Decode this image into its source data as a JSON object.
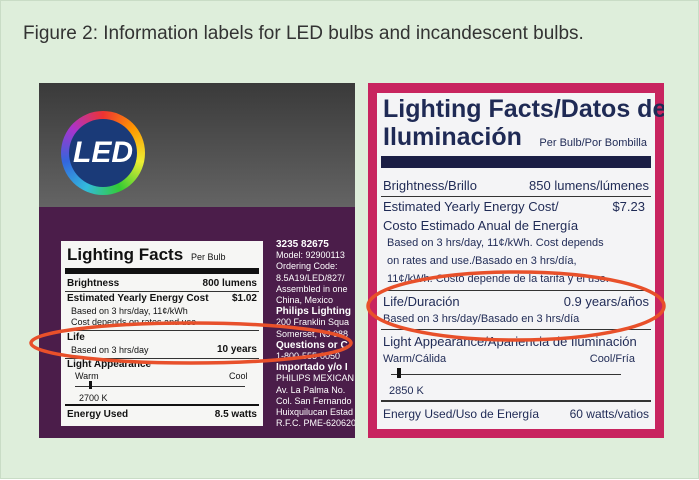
{
  "caption": "Figure 2: Information labels for LED bulbs and incandescent bulbs.",
  "led_photo": {
    "logo": "LED",
    "label": {
      "title": "Lighting Facts",
      "per": "Per Bulb",
      "brightness": [
        "Brightness",
        "800 lumens"
      ],
      "cost": [
        "Estimated Yearly Energy Cost",
        "$1.02"
      ],
      "cost_note": [
        "Based on 3 hrs/day, 11¢/kWh",
        "Cost depends on rates and use"
      ],
      "life": [
        "Life",
        "Based on 3 hrs/day",
        "10 years"
      ],
      "appearance": "Light Appearance",
      "warm": "Warm",
      "cool": "Cool",
      "temp": "2700 K",
      "energy": [
        "Energy Used",
        "8.5 watts"
      ]
    },
    "side_text": [
      {
        "text": "3235 82675",
        "bold": true
      },
      "Model: 92900113",
      "Ordering Code:",
      "8.5A19/LED/827/",
      "Assembled in one",
      "China, Mexico",
      {
        "text": "Philips Lighting",
        "bold": true
      },
      "200 Franklin Squa",
      "Somerset, NJ 088",
      {
        "text": "Questions or C",
        "bold": true
      },
      "1-800-555-0050",
      {
        "text": "Importado y/o I",
        "bold": true
      },
      "PHILIPS MEXICAN",
      "Av. La Palma No.",
      "Col. San Fernando",
      "Huixquilucan Estad",
      "R.F.C. PME-620620"
    ]
  },
  "incandescent_photo": {
    "label": {
      "title": [
        "Lighting Facts/Datos de",
        "Iluminación"
      ],
      "per": "Per Bulb/Por Bombilla",
      "brightness": [
        "Brightness/Brillo",
        "850 lumens/lúmenes"
      ],
      "cost": [
        "Estimated Yearly Energy Cost/",
        "$7.23",
        "Costo Estimado Anual de Energía"
      ],
      "cost_note": [
        "Based on 3 hrs/day, 11¢/kWh. Cost depends",
        "on rates and use./Basado en 3 hrs/día,",
        "11¢/kWh. Costo depende de la tarifa y el uso."
      ],
      "life": [
        "Life/Duración",
        "0.9 years/años",
        "Based on 3 hrs/day/Basado en 3 hrs/día"
      ],
      "appearance": "Light Appearance/Apariencia de Iluminación",
      "warm": "Warm/Cálida",
      "cool": "Cool/Fría",
      "temp": "2850 K",
      "energy": [
        "Energy Used/Uso de Energía",
        "60 watts/vatios"
      ]
    }
  }
}
